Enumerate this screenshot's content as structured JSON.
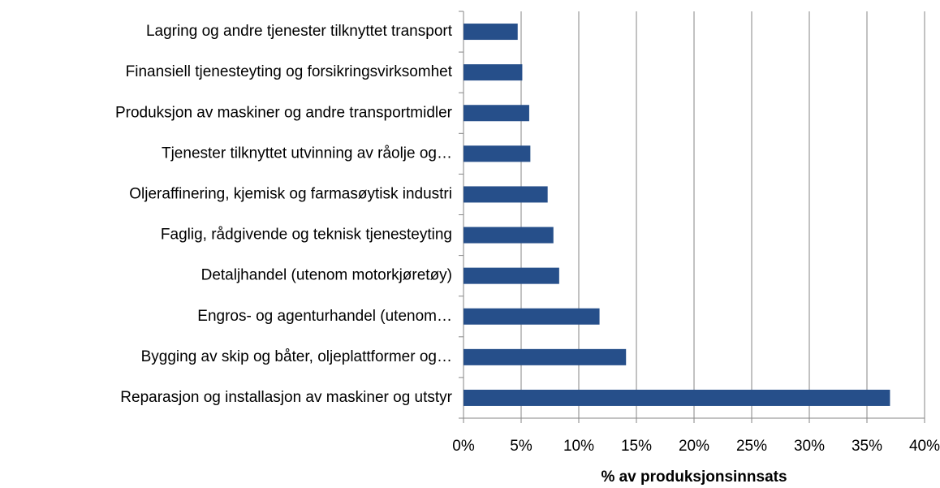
{
  "chart_data": {
    "type": "bar",
    "orientation": "horizontal",
    "x_label": "% av produksjonsinnsats",
    "categories": [
      "Lagring og andre tjenester tilknyttet transport",
      "Finansiell tjenesteyting og forsikringsvirksomhet",
      "Produksjon av maskiner og andre transportmidler",
      "Tjenester tilknyttet utvinning av råolje og…",
      "Oljeraffinering, kjemisk og farmasøytisk industri",
      "Faglig, rådgivende og teknisk tjenesteyting",
      "Detaljhandel (utenom motorkjøretøy)",
      "Engros- og agenturhandel (utenom…",
      "Bygging av skip og båter, oljeplattformer og…",
      "Reparasjon og installasjon av maskiner og utstyr"
    ],
    "values": [
      4.7,
      5.1,
      5.7,
      5.8,
      7.3,
      7.8,
      8.3,
      11.8,
      14.1,
      37.0
    ],
    "color": "#264f8a",
    "xlim": [
      0,
      40
    ],
    "xticks": [
      {
        "value": 0,
        "label": "0%"
      },
      {
        "value": 5,
        "label": "5%"
      },
      {
        "value": 10,
        "label": "10%"
      },
      {
        "value": 15,
        "label": "15%"
      },
      {
        "value": 20,
        "label": "20%"
      },
      {
        "value": 25,
        "label": "25%"
      },
      {
        "value": 30,
        "label": "30%"
      },
      {
        "value": 35,
        "label": "35%"
      },
      {
        "value": 40,
        "label": "40%"
      }
    ],
    "grid": true
  }
}
